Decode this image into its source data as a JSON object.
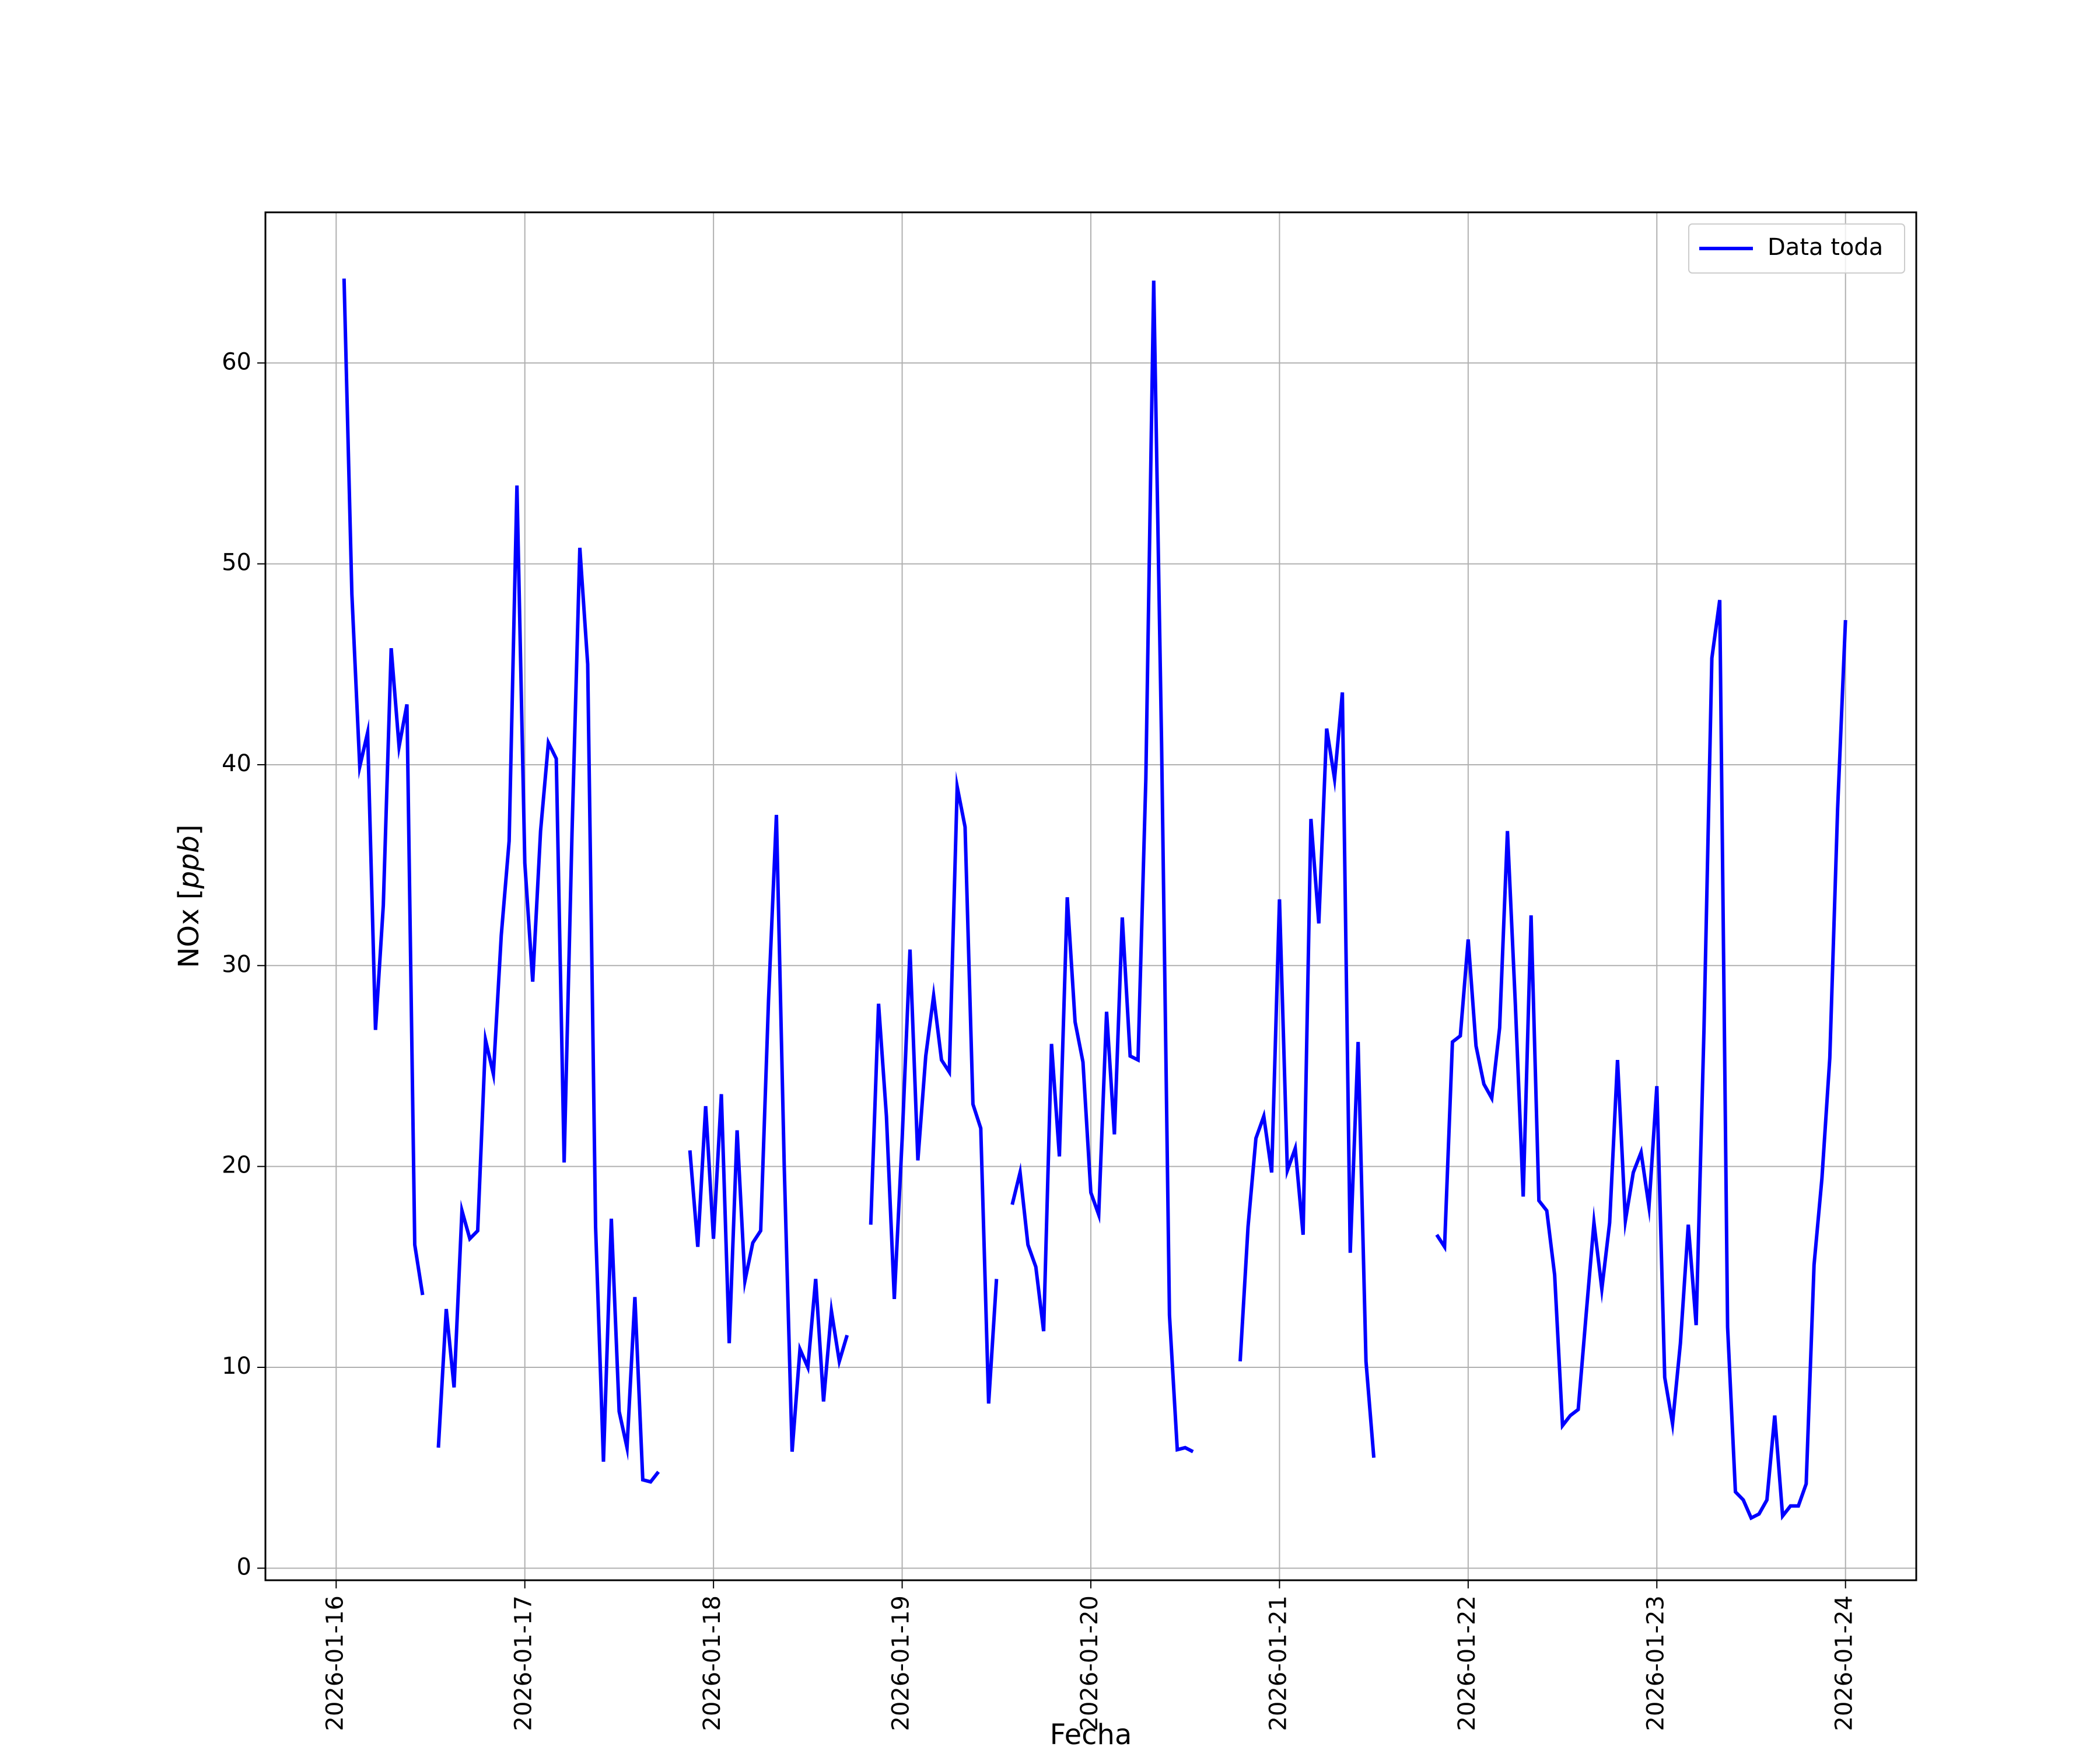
{
  "chart_data": {
    "type": "line",
    "title": "",
    "xlabel": "Fecha",
    "ylabel": "NOx [ppb]",
    "ylabel_parts": {
      "prefix": "NOx [",
      "math": "ppb",
      "suffix": "]"
    },
    "xlim": [
      "2026-01-15 15:00",
      "2026-01-24 09:00"
    ],
    "ylim": [
      -0.6,
      67.5
    ],
    "xticks": [
      "2026-01-16",
      "2026-01-17",
      "2026-01-18",
      "2026-01-19",
      "2026-01-20",
      "2026-01-21",
      "2026-01-22",
      "2026-01-23",
      "2026-01-24"
    ],
    "yticks": [
      0,
      10,
      20,
      30,
      40,
      50,
      60
    ],
    "grid": true,
    "legend_position": "top-right",
    "line_color": "#0000ff",
    "series": [
      {
        "name": "Data toda",
        "step_hours": 1,
        "segments": [
          {
            "start": "2026-01-16 01:00",
            "values": [
              64.2,
              48.5,
              39.9,
              41.6,
              26.8,
              33.0,
              45.8,
              40.9,
              43.0,
              16.1,
              13.6
            ]
          },
          {
            "start": "2026-01-16 13:00",
            "values": [
              6.0,
              12.9,
              9.0,
              17.8,
              16.4,
              16.8,
              26.3,
              24.6,
              31.5,
              36.2,
              53.9,
              35.1,
              29.2,
              36.7,
              41.1,
              40.3,
              20.2,
              36.6,
              50.8,
              45.0,
              17.0,
              5.3,
              17.4,
              7.8,
              6.0,
              13.5,
              4.4,
              4.3,
              4.8
            ]
          },
          {
            "start": "2026-01-17 21:00",
            "values": [
              20.8,
              16.0,
              23.0,
              16.4,
              23.6,
              11.2,
              21.8,
              14.3,
              16.2,
              16.8,
              28.3,
              37.5,
              20.0,
              5.8,
              10.9,
              10.0,
              14.4,
              8.3,
              12.8,
              10.3,
              11.6
            ]
          },
          {
            "start": "2026-01-18 20:00",
            "values": [
              17.1,
              28.1,
              22.5,
              13.4,
              21.4,
              30.8,
              20.3,
              25.5,
              28.5,
              25.3,
              24.7,
              38.9,
              36.9,
              23.1,
              21.9,
              8.2,
              14.4
            ]
          },
          {
            "start": "2026-01-19 14:00",
            "values": [
              18.1,
              19.7,
              16.1,
              15.0,
              11.8,
              26.1,
              20.5,
              33.4,
              27.2,
              25.2,
              18.7,
              17.6,
              27.7,
              21.6,
              32.4,
              25.5,
              25.3,
              39.3,
              64.1,
              41.0,
              12.6,
              5.9,
              6.0,
              5.8
            ]
          },
          {
            "start": "2026-01-20 19:00",
            "values": [
              10.3,
              17.0,
              21.4,
              22.5,
              19.7,
              33.3,
              19.8,
              20.9,
              16.6,
              37.3,
              32.1,
              41.8,
              39.3,
              43.6,
              15.7,
              26.2,
              10.3,
              5.5
            ]
          },
          {
            "start": "2026-01-21 20:00",
            "values": [
              16.6,
              16.0,
              26.2,
              26.5,
              31.3,
              26.0,
              24.1,
              23.4,
              26.9,
              36.7,
              28.1,
              18.5,
              32.5,
              18.3,
              17.8,
              14.6,
              7.1,
              7.6,
              7.9,
              12.6,
              17.2,
              13.9,
              17.2,
              25.3,
              17.3,
              19.7,
              20.7,
              18.0,
              24.0,
              9.5,
              7.2,
              11.2,
              17.1,
              12.1,
              26.8,
              45.3,
              48.2,
              12.0,
              3.8,
              3.4,
              2.5,
              2.7,
              3.4,
              7.6,
              2.6,
              3.1,
              3.1,
              4.2,
              15.1,
              19.4,
              25.4,
              37.8,
              47.2
            ]
          }
        ]
      }
    ]
  }
}
